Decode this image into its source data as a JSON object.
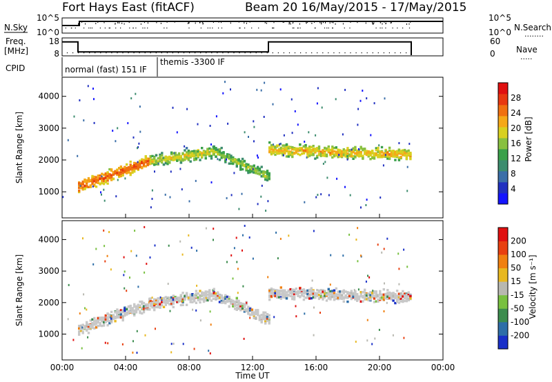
{
  "header": {
    "station": "Fort Hays East (fitACF)",
    "beam_date": "Beam 20  16/May/2015 - 17/May/2015"
  },
  "colors": {
    "noise_line": "#000000",
    "ground_scatter": "#c8c8c8"
  },
  "chart_data": [
    {
      "type": "line",
      "name": "noise-panel",
      "ylabel": "N.Sky",
      "y_ticks_left": [
        "10^5",
        "10^0"
      ],
      "y_ticks_right": [
        "10^5",
        "10^0"
      ],
      "right_label": "N.Search",
      "right_legend_sample": "........",
      "y_scale": "log",
      "xlim_hours": [
        0,
        24
      ]
    },
    {
      "type": "line",
      "name": "frequency-panel",
      "ylabel_line1": "Freq.",
      "ylabel_line2": "[MHz]",
      "y_ticks_left": [
        "18",
        "8"
      ],
      "y_ticks_right": [
        "60",
        "0"
      ],
      "right_label": "Nave",
      "right_legend_sample": ".....",
      "ylim_left": [
        8,
        18
      ],
      "ylim_right": [
        0,
        60
      ],
      "freq_steps_hours_mhz": [
        [
          0,
          16
        ],
        [
          1,
          10
        ],
        [
          13,
          16
        ],
        [
          22,
          16
        ]
      ],
      "nave_value": 10
    },
    {
      "type": "table",
      "name": "cpid-row",
      "label": "CPID",
      "segments": [
        {
          "start_hour": 0,
          "end_hour": 6,
          "text": "normal (fast) 151 IF"
        },
        {
          "start_hour": 6,
          "end_hour": 24,
          "text": "themis -3300 IF"
        }
      ]
    },
    {
      "type": "heatmap",
      "name": "power-panel",
      "ylabel": "Slant Range [km]",
      "ylim": [
        180,
        4600
      ],
      "yticks": [
        1000,
        2000,
        3000,
        4000
      ],
      "colorbar_label": "Power [dB]",
      "colorbar_ticks": [
        "4",
        "8",
        "12",
        "16",
        "20",
        "24",
        "28"
      ],
      "colorbar_colors": [
        "#1414ff",
        "#2030c0",
        "#3a6ea8",
        "#3c8c6e",
        "#3aa04a",
        "#88c040",
        "#d8d020",
        "#f5a818",
        "#f07010",
        "#e83810",
        "#e01010"
      ],
      "echo_bands": [
        {
          "start_hour": 1.0,
          "end_hour": 5.5,
          "center_km_start": 1200,
          "center_km_end": 2000,
          "power_db": 24
        },
        {
          "start_hour": 5.5,
          "end_hour": 9.5,
          "center_km_start": 2000,
          "center_km_end": 2300,
          "power_db": 18
        },
        {
          "start_hour": 9.5,
          "end_hour": 13.0,
          "center_km_start": 2300,
          "center_km_end": 1500,
          "power_db": 16
        },
        {
          "start_hour": 13.0,
          "end_hour": 22.0,
          "center_km_start": 2350,
          "center_km_end": 2200,
          "power_db": 20
        }
      ]
    },
    {
      "type": "heatmap",
      "name": "velocity-panel",
      "ylabel": "Slant Range [km]",
      "ylim": [
        180,
        4600
      ],
      "yticks": [
        1000,
        2000,
        3000,
        4000
      ],
      "colorbar_label": "Velocity [m s⁻¹]",
      "colorbar_ticks": [
        "200",
        "100",
        "50",
        "15",
        "-15",
        "-50",
        "-100",
        "-200"
      ],
      "colorbar_colors": [
        "#1a30c8",
        "#2e6ea8",
        "#3c8c4e",
        "#78c040",
        "#b8b8b0",
        "#e8b820",
        "#f08010",
        "#e84010",
        "#e01010"
      ],
      "xticks": [
        "00:00",
        "04:00",
        "08:00",
        "12:00",
        "16:00",
        "20:00",
        "00:00"
      ],
      "xlabel": "Time UT"
    }
  ]
}
